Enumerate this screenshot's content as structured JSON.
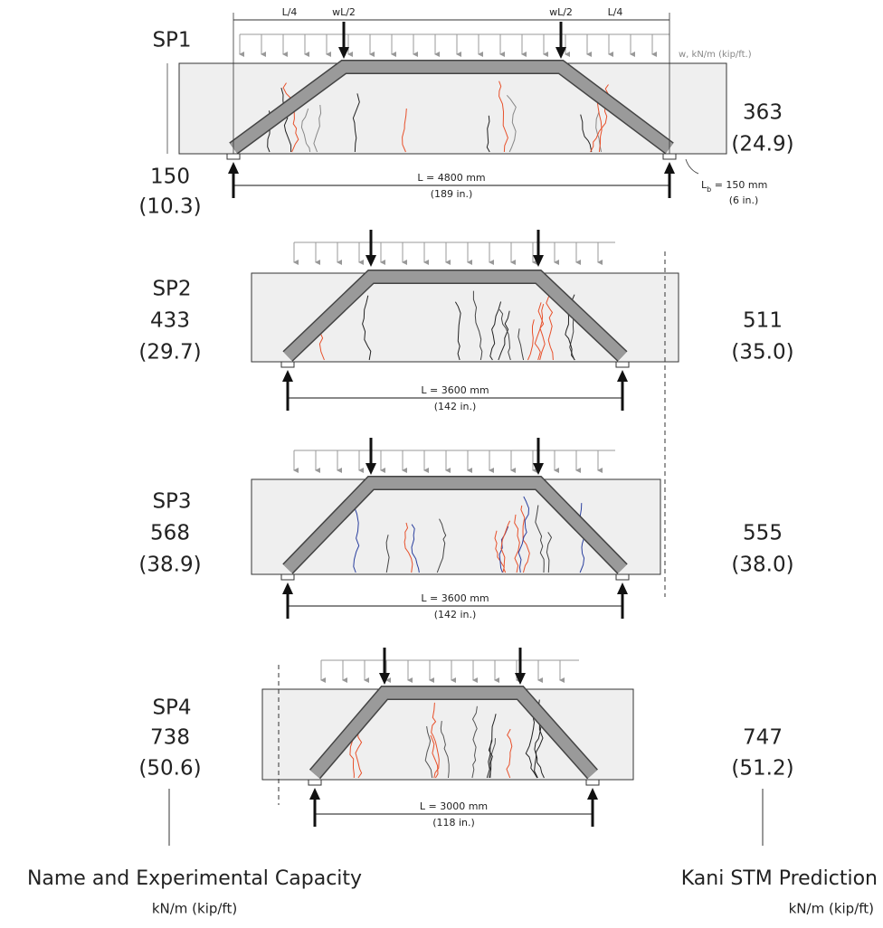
{
  "specimens": [
    {
      "name": "SP1",
      "capacity": "150",
      "capacity_imperial": "(10.3)",
      "prediction": "363",
      "prediction_imperial": "(24.9)",
      "span": "L = 4800 mm",
      "span_imperial": "(189 in.)"
    },
    {
      "name": "SP2",
      "capacity": "433",
      "capacity_imperial": "(29.7)",
      "prediction": "511",
      "prediction_imperial": "(35.0)",
      "span": "L = 3600 mm",
      "span_imperial": "(142 in.)"
    },
    {
      "name": "SP3",
      "capacity": "568",
      "capacity_imperial": "(38.9)",
      "prediction": "555",
      "prediction_imperial": "(38.0)",
      "span": "L = 3600 mm",
      "span_imperial": "(142 in.)"
    },
    {
      "name": "SP4",
      "capacity": "738",
      "capacity_imperial": "(50.6)",
      "prediction": "747",
      "prediction_imperial": "(51.2)",
      "span": "L = 3000 mm",
      "span_imperial": "(118 in.)"
    }
  ],
  "annotations": {
    "quarter_left": "L/4",
    "point_load_left": "wL/2",
    "point_load_right": "wL/2",
    "quarter_right": "L/4",
    "distributed_load": "w, kN/m (kip/ft.)",
    "bearing": {
      "symbol": "L",
      "subscript": "b",
      "value": " = 150 mm",
      "imperial": "(6 in.)"
    }
  },
  "footer": {
    "left_title": "Name and Experimental Capacity",
    "left_units": "kN/m (kip/ft)",
    "right_title": "Kani STM Prediction",
    "right_units": "kN/m (kip/ft)"
  }
}
